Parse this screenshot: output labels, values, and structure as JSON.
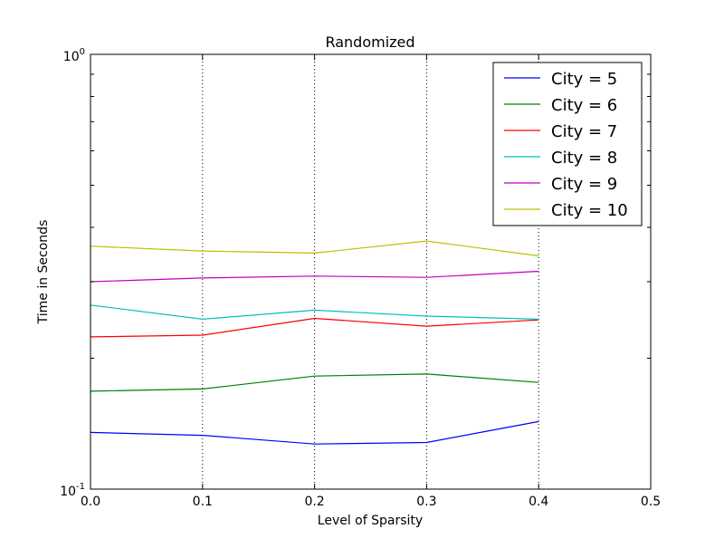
{
  "chart_data": {
    "type": "line",
    "title": "Randomized",
    "xlabel": "Level of Sparsity",
    "ylabel": "Time in Seconds",
    "xlim": [
      0.0,
      0.5
    ],
    "ylim": [
      0.1,
      1.0
    ],
    "yscale": "log",
    "grid": "vertical dotted lines at x ticks",
    "legend_position": "top-right",
    "x": [
      0.0,
      0.1,
      0.2,
      0.3,
      0.4
    ],
    "x_ticks": [
      {
        "value": 0.0,
        "label": "0.0"
      },
      {
        "value": 0.1,
        "label": "0.1"
      },
      {
        "value": 0.2,
        "label": "0.2"
      },
      {
        "value": 0.3,
        "label": "0.3"
      },
      {
        "value": 0.4,
        "label": "0.4"
      },
      {
        "value": 0.5,
        "label": "0.5"
      }
    ],
    "y_ticks": [
      {
        "value": 0.1,
        "base": "10",
        "exp": "-1"
      },
      {
        "value": 1.0,
        "base": "10",
        "exp": "0"
      }
    ],
    "series": [
      {
        "name": "City = 5",
        "color": "#0000ff",
        "values": [
          0.135,
          0.133,
          0.127,
          0.128,
          0.143
        ]
      },
      {
        "name": "City = 6",
        "color": "#008000",
        "values": [
          0.168,
          0.17,
          0.182,
          0.184,
          0.176
        ]
      },
      {
        "name": "City = 7",
        "color": "#ff0000",
        "values": [
          0.224,
          0.226,
          0.247,
          0.237,
          0.245
        ]
      },
      {
        "name": "City = 8",
        "color": "#00bfbf",
        "values": [
          0.265,
          0.246,
          0.258,
          0.25,
          0.246
        ]
      },
      {
        "name": "City = 9",
        "color": "#bf00bf",
        "values": [
          0.3,
          0.306,
          0.309,
          0.307,
          0.317
        ]
      },
      {
        "name": "City = 10",
        "color": "#bfbf00",
        "values": [
          0.362,
          0.353,
          0.349,
          0.372,
          0.344
        ]
      }
    ]
  }
}
